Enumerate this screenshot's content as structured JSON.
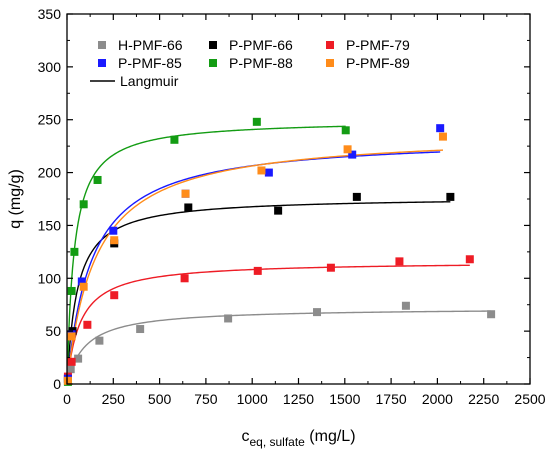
{
  "chart_data": {
    "type": "scatter",
    "xlabel": {
      "main": "c",
      "sub": "eq, sulfate",
      "unit": " (mg/L)"
    },
    "ylabel": "q (mg/g)",
    "xlim": [
      0,
      2500
    ],
    "ylim": [
      0,
      350
    ],
    "xticks": [
      0,
      250,
      500,
      750,
      1000,
      1250,
      1500,
      1750,
      2000,
      2250,
      2500
    ],
    "yticks": [
      0,
      50,
      100,
      150,
      200,
      250,
      300,
      350
    ],
    "grid": false,
    "legend_position": "top-left",
    "fit_label": "Langmuir",
    "series": [
      {
        "name": "H-PMF-66",
        "color": "#8c8c8c",
        "x": [
          5,
          20,
          60,
          175,
          395,
          870,
          1350,
          1830,
          2290
        ],
        "y": [
          3,
          14,
          24,
          41,
          52,
          62,
          68,
          74,
          66
        ],
        "fit": {
          "qmax": 72.0,
          "kL": 0.01
        }
      },
      {
        "name": "P-PMF-66",
        "color": "#000000",
        "x": [
          5,
          30,
          255,
          655,
          1140,
          1565,
          2070
        ],
        "y": [
          5,
          50,
          133,
          167,
          164,
          177,
          177
        ],
        "fit": {
          "qmax": 177.0,
          "kL": 0.018
        }
      },
      {
        "name": "P-PMF-79",
        "color": "#ee1c25",
        "x": [
          5,
          25,
          110,
          255,
          635,
          1030,
          1425,
          1795,
          2175
        ],
        "y": [
          7,
          21,
          56,
          84,
          100,
          107,
          110,
          116,
          118
        ],
        "fit": {
          "qmax": 116.0,
          "kL": 0.014
        }
      },
      {
        "name": "P-PMF-85",
        "color": "#1a1aff",
        "x": [
          5,
          25,
          80,
          250,
          640,
          1090,
          1540,
          2015
        ],
        "y": [
          5,
          47,
          97,
          145,
          180,
          200,
          217,
          242
        ],
        "fit": {
          "qmax": 234.0,
          "kL": 0.0075
        }
      },
      {
        "name": "P-PMF-88",
        "color": "#139c13",
        "x": [
          5,
          25,
          40,
          90,
          165,
          580,
          1025,
          1505
        ],
        "y": [
          2,
          88,
          125,
          170,
          193,
          231,
          248,
          240
        ],
        "fit": {
          "qmax": 250.0,
          "kL": 0.026
        }
      },
      {
        "name": "P-PMF-89",
        "color": "#ff8c1a",
        "x": [
          5,
          25,
          90,
          255,
          640,
          1050,
          1515,
          2030
        ],
        "y": [
          3,
          45,
          92,
          136,
          180,
          202,
          222,
          234
        ],
        "fit": {
          "qmax": 238.0,
          "kL": 0.0065
        }
      }
    ]
  }
}
